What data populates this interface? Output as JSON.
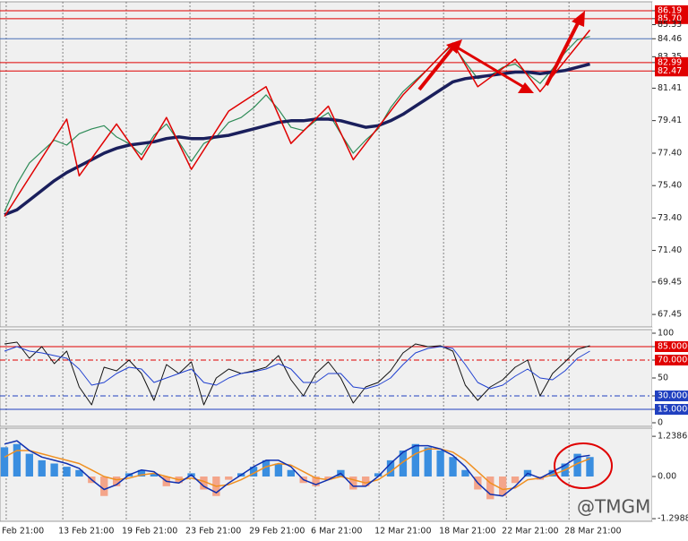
{
  "chart_data": [
    {
      "type": "line",
      "xlim": [
        -0.36,
        52.0
      ],
      "ylim": [
        66.68,
        86.74
      ],
      "yticks": [
        86.19,
        {
          "value": 85.7,
          "label": "85.70"
        },
        85.33,
        84.46,
        83.35,
        82.99,
        82.47,
        81.41,
        79.41,
        {
          "value": 77.4,
          "label": "77.40"
        },
        {
          "value": 75.4,
          "label": "75.40"
        },
        {
          "value": 73.4,
          "label": "73.40"
        },
        {
          "value": 71.4,
          "label": "71.40"
        },
        69.45,
        67.45
      ],
      "levels": [
        {
          "value": 86.19,
          "color": "#e00000"
        },
        {
          "value": 85.7,
          "color": "#e00000"
        },
        {
          "value": 84.46,
          "color": "#4a6fb5"
        },
        {
          "value": 82.99,
          "color": "#e00000"
        },
        {
          "value": 82.47,
          "color": "#e00000"
        }
      ],
      "series": [
        {
          "color": "#2e8b57",
          "width": 1.2,
          "values": [
            73.8,
            75.5,
            76.8,
            77.5,
            78.2,
            77.9,
            78.6,
            78.9,
            79.1,
            78.4,
            78.0,
            77.3,
            78.5,
            79.2,
            78.1,
            76.9,
            78.0,
            78.4,
            79.3,
            79.6,
            80.2,
            81.0,
            80.1,
            79.0,
            78.8,
            79.4,
            79.9,
            78.6,
            77.4,
            78.2,
            78.9,
            80.2,
            81.2,
            81.9,
            82.6,
            83.4,
            84.1,
            83.0,
            82.0,
            82.2,
            82.7,
            82.9,
            82.3,
            81.7,
            82.6,
            83.6,
            84.4,
            84.6
          ]
        },
        {
          "color": "#1a1f5c",
          "width": 3.5,
          "values": [
            73.6,
            73.9,
            74.5,
            75.1,
            75.7,
            76.2,
            76.6,
            77.0,
            77.4,
            77.7,
            77.9,
            78.0,
            78.1,
            78.3,
            78.4,
            78.3,
            78.3,
            78.4,
            78.5,
            78.7,
            78.9,
            79.1,
            79.3,
            79.4,
            79.4,
            79.5,
            79.5,
            79.4,
            79.2,
            79.0,
            79.1,
            79.4,
            79.8,
            80.3,
            80.8,
            81.3,
            81.8,
            82.0,
            82.1,
            82.2,
            82.3,
            82.4,
            82.4,
            82.3,
            82.4,
            82.5,
            82.7,
            82.9
          ]
        },
        {
          "color": "#e00000",
          "width": 1.5,
          "x": [
            0,
            5,
            6,
            9,
            11,
            13,
            15,
            18,
            21,
            23,
            26,
            28,
            32,
            36,
            38,
            41,
            43,
            47
          ],
          "values": [
            73.5,
            79.5,
            76.0,
            79.2,
            77.0,
            79.6,
            76.4,
            80.0,
            81.5,
            78.0,
            80.3,
            77.0,
            81.0,
            84.2,
            81.5,
            83.2,
            81.2,
            85.0
          ]
        }
      ]
    },
    {
      "type": "line",
      "xlim": [
        -0.36,
        52.0
      ],
      "ylim": [
        -4,
        104
      ],
      "yticks": [
        100,
        {
          "value": 85,
          "label": "85.0000"
        },
        {
          "value": 70,
          "label": "70.0000"
        },
        50,
        {
          "value": 30,
          "label": "30.0000"
        },
        {
          "value": 15,
          "label": "15.0000"
        },
        0
      ],
      "levels": [
        {
          "value": 85,
          "color": "#e00000"
        },
        {
          "value": 70,
          "color": "#e00000",
          "dash": "6 3 2 3"
        },
        {
          "value": 30,
          "color": "#2040c0",
          "dash": "6 3 2 3"
        },
        {
          "value": 15,
          "color": "#2040c0"
        }
      ],
      "series": [
        {
          "color": "#111111",
          "width": 1,
          "values": [
            88,
            90,
            72,
            85,
            66,
            80,
            40,
            20,
            62,
            58,
            70,
            55,
            25,
            65,
            55,
            68,
            20,
            50,
            60,
            55,
            58,
            62,
            75,
            48,
            30,
            55,
            68,
            50,
            22,
            40,
            45,
            58,
            78,
            88,
            85,
            86,
            80,
            42,
            25,
            40,
            48,
            62,
            70,
            30,
            55,
            68,
            82,
            86
          ]
        },
        {
          "color": "#2040d0",
          "width": 1,
          "values": [
            80,
            85,
            80,
            78,
            75,
            72,
            60,
            42,
            45,
            55,
            62,
            60,
            45,
            50,
            55,
            60,
            45,
            42,
            50,
            55,
            57,
            60,
            66,
            60,
            45,
            45,
            55,
            55,
            40,
            38,
            42,
            50,
            65,
            78,
            83,
            85,
            83,
            65,
            45,
            38,
            42,
            52,
            60,
            50,
            48,
            58,
            72,
            80
          ]
        }
      ]
    },
    {
      "type": "line",
      "xlim": [
        -0.36,
        52.0
      ],
      "ylim": [
        -1.38,
        1.49
      ],
      "yticks": [
        1.2386,
        {
          "value": 0,
          "label": "0.00"
        },
        -1.2988
      ],
      "xticks": [
        {
          "value": 0.14,
          "label": "Feb 21:00"
        },
        {
          "value": 4.68,
          "label": "13 Feb 21:00"
        },
        {
          "value": 9.78,
          "label": "19 Feb 21:00"
        },
        {
          "value": 14.89,
          "label": "23 Feb 21:00"
        },
        {
          "value": 20.0,
          "label": "29 Feb 21:00"
        },
        {
          "value": 24.96,
          "label": "6 Mar 21:00"
        },
        {
          "value": 30.07,
          "label": "12 Mar 21:00"
        },
        {
          "value": 35.25,
          "label": "18 Mar 21:00"
        },
        {
          "value": 40.29,
          "label": "22 Mar 21:00"
        },
        {
          "value": 45.32,
          "label": "28 Mar 21:00"
        }
      ],
      "series": [
        {
          "type": "bar",
          "color": "#3a8ee0",
          "negative_color": "#f4a58a",
          "values": [
            0.9,
            1.0,
            0.7,
            0.5,
            0.4,
            0.3,
            0.2,
            -0.2,
            -0.6,
            -0.3,
            0.1,
            0.2,
            0.1,
            -0.3,
            -0.2,
            0.1,
            -0.4,
            -0.6,
            -0.1,
            0.1,
            0.3,
            0.5,
            0.4,
            0.2,
            -0.2,
            -0.3,
            -0.1,
            0.2,
            -0.4,
            -0.3,
            0.1,
            0.5,
            0.8,
            1.0,
            0.9,
            0.8,
            0.6,
            0.2,
            -0.4,
            -0.7,
            -0.6,
            -0.2,
            0.2,
            -0.1,
            0.2,
            0.4,
            0.7,
            0.6
          ]
        },
        {
          "color": "#f09020",
          "width": 1.5,
          "values": [
            0.6,
            0.8,
            0.8,
            0.7,
            0.6,
            0.5,
            0.4,
            0.2,
            0.0,
            -0.1,
            -0.05,
            0.05,
            0.1,
            0.0,
            -0.1,
            -0.05,
            -0.15,
            -0.3,
            -0.25,
            -0.1,
            0.1,
            0.3,
            0.4,
            0.35,
            0.15,
            -0.05,
            -0.1,
            0.0,
            -0.1,
            -0.2,
            -0.1,
            0.15,
            0.45,
            0.7,
            0.85,
            0.85,
            0.75,
            0.5,
            0.15,
            -0.2,
            -0.4,
            -0.35,
            -0.1,
            -0.05,
            0.05,
            0.2,
            0.4,
            0.55
          ]
        },
        {
          "color": "#1030b0",
          "width": 1.5,
          "values": [
            1.0,
            1.1,
            0.8,
            0.6,
            0.5,
            0.4,
            0.25,
            -0.1,
            -0.4,
            -0.25,
            0.05,
            0.2,
            0.15,
            -0.15,
            -0.2,
            0.05,
            -0.3,
            -0.5,
            -0.2,
            0.05,
            0.3,
            0.5,
            0.5,
            0.3,
            -0.1,
            -0.25,
            -0.1,
            0.1,
            -0.3,
            -0.3,
            0.0,
            0.4,
            0.75,
            0.95,
            0.95,
            0.85,
            0.65,
            0.3,
            -0.2,
            -0.55,
            -0.6,
            -0.3,
            0.1,
            -0.05,
            0.15,
            0.35,
            0.6,
            0.65
          ]
        }
      ]
    }
  ],
  "watermark": "@TMGM"
}
